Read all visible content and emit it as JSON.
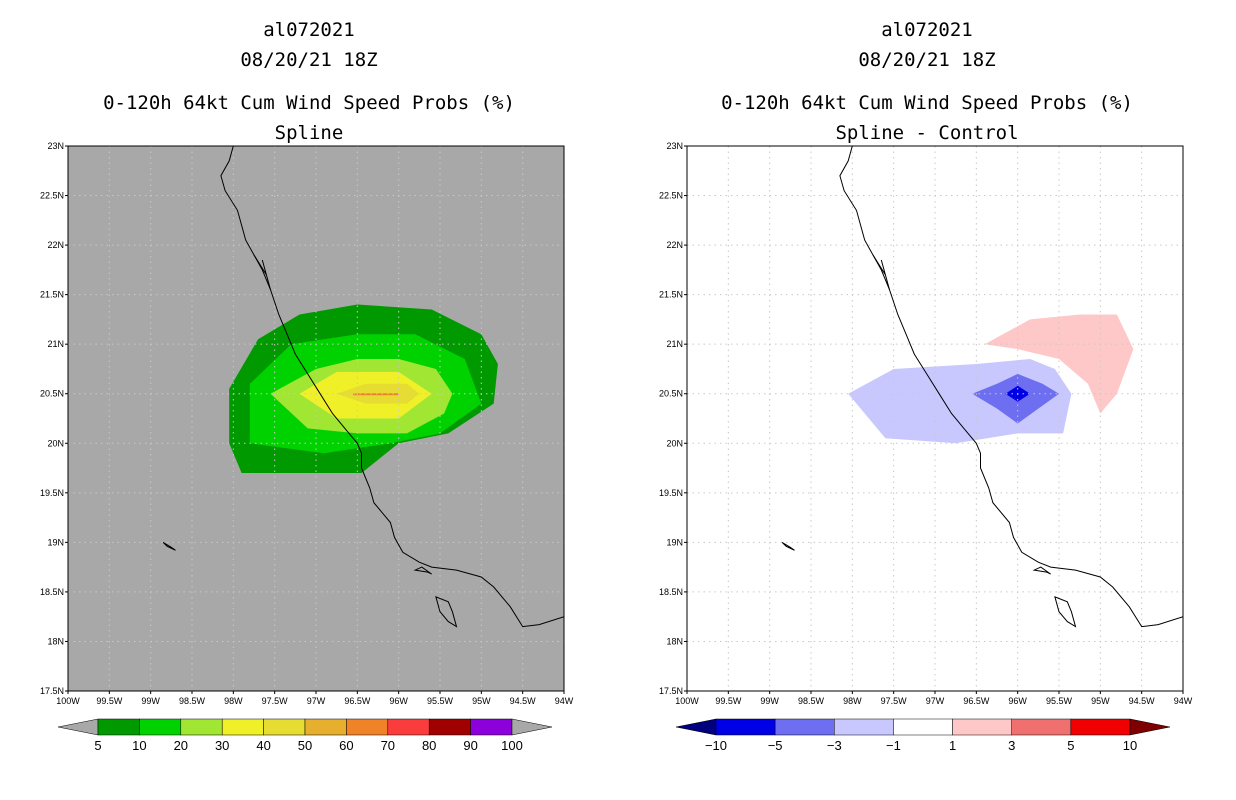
{
  "chart_data": [
    {
      "type": "heatmap",
      "title_lines": [
        "al072021",
        "08/20/21 18Z",
        "0-120h 64kt Cum Wind Speed Probs (%)",
        "Spline"
      ],
      "xlim": [
        -100,
        -94
      ],
      "ylim": [
        17.5,
        23
      ],
      "x_ticks": [
        "100W",
        "99.5W",
        "99W",
        "98.5W",
        "98W",
        "97.5W",
        "97W",
        "96.5W",
        "96W",
        "95.5W",
        "95W",
        "94.5W",
        "94W"
      ],
      "y_ticks": [
        "17.5N",
        "18N",
        "18.5N",
        "19N",
        "19.5N",
        "20N",
        "20.5N",
        "21N",
        "21.5N",
        "22N",
        "22.5N",
        "23N"
      ],
      "background_color": "#a8a8a8",
      "grid": true,
      "contour_levels": [
        {
          "threshold": 5,
          "color": "#009a00",
          "polygon": [
            [
              -97.9,
              19.7
            ],
            [
              -96.9,
              19.7
            ],
            [
              -96.45,
              19.7
            ],
            [
              -96.0,
              20.0
            ],
            [
              -95.4,
              20.1
            ],
            [
              -94.85,
              20.4
            ],
            [
              -94.8,
              20.8
            ],
            [
              -95.0,
              21.1
            ],
            [
              -95.6,
              21.35
            ],
            [
              -96.5,
              21.4
            ],
            [
              -97.2,
              21.3
            ],
            [
              -97.7,
              21.05
            ],
            [
              -98.05,
              20.55
            ],
            [
              -98.05,
              20.0
            ],
            [
              -97.9,
              19.7
            ]
          ]
        },
        {
          "threshold": 10,
          "color": "#00d200",
          "polygon": [
            [
              -97.8,
              20.0
            ],
            [
              -96.9,
              19.9
            ],
            [
              -96.1,
              20.0
            ],
            [
              -95.5,
              20.1
            ],
            [
              -95.0,
              20.4
            ],
            [
              -95.2,
              20.85
            ],
            [
              -95.8,
              21.1
            ],
            [
              -96.5,
              21.1
            ],
            [
              -97.3,
              21.0
            ],
            [
              -97.8,
              20.6
            ],
            [
              -97.8,
              20.0
            ]
          ]
        },
        {
          "threshold": 20,
          "color": "#a0e632",
          "polygon": [
            [
              -97.55,
              20.5
            ],
            [
              -97.1,
              20.15
            ],
            [
              -96.5,
              20.1
            ],
            [
              -95.9,
              20.1
            ],
            [
              -95.45,
              20.3
            ],
            [
              -95.35,
              20.5
            ],
            [
              -95.55,
              20.75
            ],
            [
              -96.0,
              20.85
            ],
            [
              -96.5,
              20.85
            ],
            [
              -97.0,
              20.75
            ],
            [
              -97.55,
              20.5
            ]
          ]
        },
        {
          "threshold": 30,
          "color": "#f0f028",
          "polygon": [
            [
              -97.2,
              20.5
            ],
            [
              -96.75,
              20.25
            ],
            [
              -96.0,
              20.25
            ],
            [
              -95.6,
              20.5
            ],
            [
              -96.0,
              20.72
            ],
            [
              -96.75,
              20.72
            ],
            [
              -97.2,
              20.5
            ]
          ]
        },
        {
          "threshold": 40,
          "color": "#e6dc32",
          "polygon": [
            [
              -96.75,
              20.5
            ],
            [
              -96.4,
              20.4
            ],
            [
              -95.9,
              20.4
            ],
            [
              -95.75,
              20.5
            ],
            [
              -95.9,
              20.6
            ],
            [
              -96.4,
              20.6
            ],
            [
              -96.75,
              20.5
            ]
          ]
        },
        {
          "threshold": 60,
          "color": "#f08228",
          "polygon": [
            [
              -96.55,
              20.505
            ],
            [
              -96.0,
              20.505
            ],
            [
              -96.0,
              20.485
            ],
            [
              -96.55,
              20.485
            ]
          ]
        }
      ],
      "colorbar": {
        "labels": [
          "5",
          "10",
          "20",
          "30",
          "40",
          "50",
          "60",
          "70",
          "80",
          "90",
          "100"
        ],
        "colors": [
          "#009a00",
          "#00d200",
          "#a0e632",
          "#f0f028",
          "#e6dc32",
          "#e6af2d",
          "#f08228",
          "#fa3c3c",
          "#a00000",
          "#8c00dc"
        ],
        "end_under": "#a8a8a8",
        "end_over": "#a8a8a8"
      }
    },
    {
      "type": "heatmap",
      "title_lines": [
        "al072021",
        "08/20/21 18Z",
        "0-120h 64kt Cum Wind Speed Probs (%)",
        "Spline - Control"
      ],
      "xlim": [
        -100,
        -94
      ],
      "ylim": [
        17.5,
        23
      ],
      "x_ticks": [
        "100W",
        "99.5W",
        "99W",
        "98.5W",
        "98W",
        "97.5W",
        "97W",
        "96.5W",
        "96W",
        "95.5W",
        "95W",
        "94.5W",
        "94W"
      ],
      "y_ticks": [
        "17.5N",
        "18N",
        "18.5N",
        "19N",
        "19.5N",
        "20N",
        "20.5N",
        "21N",
        "21.5N",
        "22N",
        "22.5N",
        "23N"
      ],
      "background_color": "#ffffff",
      "grid": true,
      "contour_levels": [
        {
          "threshold": -1,
          "color": "#c8c8ff",
          "polygon": [
            [
              -98.05,
              20.5
            ],
            [
              -97.5,
              20.75
            ],
            [
              -96.5,
              20.8
            ],
            [
              -95.85,
              20.85
            ],
            [
              -95.55,
              20.75
            ],
            [
              -95.35,
              20.5
            ],
            [
              -95.45,
              20.1
            ],
            [
              -96.0,
              20.1
            ],
            [
              -96.75,
              20.0
            ],
            [
              -97.6,
              20.05
            ],
            [
              -98.05,
              20.5
            ]
          ]
        },
        {
          "threshold": -3,
          "color": "#6e6ef0",
          "polygon": [
            [
              -96.55,
              20.5
            ],
            [
              -96.25,
              20.6
            ],
            [
              -96.0,
              20.7
            ],
            [
              -95.7,
              20.6
            ],
            [
              -95.5,
              20.5
            ],
            [
              -95.75,
              20.35
            ],
            [
              -96.0,
              20.2
            ],
            [
              -96.25,
              20.35
            ],
            [
              -96.55,
              20.5
            ]
          ]
        },
        {
          "threshold": -5,
          "color": "#0000e6",
          "polygon": [
            [
              -96.15,
              20.5
            ],
            [
              -96.0,
              20.58
            ],
            [
              -95.85,
              20.5
            ],
            [
              -96.0,
              20.42
            ],
            [
              -96.15,
              20.5
            ]
          ]
        },
        {
          "threshold": 1,
          "color": "#ffc8c8",
          "polygon": [
            [
              -96.4,
              21.0
            ],
            [
              -95.85,
              21.25
            ],
            [
              -95.25,
              21.3
            ],
            [
              -94.8,
              21.3
            ],
            [
              -94.6,
              20.95
            ],
            [
              -94.8,
              20.5
            ],
            [
              -95.0,
              20.3
            ],
            [
              -95.15,
              20.6
            ],
            [
              -95.5,
              20.85
            ],
            [
              -96.0,
              20.95
            ],
            [
              -96.4,
              21.0
            ]
          ]
        }
      ],
      "colorbar": {
        "labels": [
          "-10",
          "-5",
          "-3",
          "-1",
          "1",
          "3",
          "5",
          "10"
        ],
        "colors": [
          "#0000e6",
          "#6e6ef0",
          "#c8c8ff",
          "#ffffff",
          "#ffc8c8",
          "#f07070",
          "#f00000"
        ],
        "end_under": "#00007f",
        "end_over": "#7f0000"
      }
    }
  ],
  "coastline": [
    [
      -98.0,
      23.0
    ],
    [
      -98.05,
      22.85
    ],
    [
      -98.15,
      22.7
    ],
    [
      -98.1,
      22.55
    ],
    [
      -97.95,
      22.35
    ],
    [
      -97.9,
      22.2
    ],
    [
      -97.85,
      22.05
    ],
    [
      -97.75,
      21.9
    ],
    [
      -97.65,
      21.75
    ],
    [
      -97.55,
      21.55
    ],
    [
      -97.45,
      21.3
    ],
    [
      -97.35,
      21.1
    ],
    [
      -97.25,
      20.9
    ],
    [
      -97.1,
      20.7
    ],
    [
      -96.95,
      20.5
    ],
    [
      -96.8,
      20.3
    ],
    [
      -96.65,
      20.15
    ],
    [
      -96.5,
      20.0
    ],
    [
      -96.45,
      19.9
    ],
    [
      -96.45,
      19.75
    ],
    [
      -96.35,
      19.55
    ],
    [
      -96.3,
      19.4
    ],
    [
      -96.1,
      19.2
    ],
    [
      -96.05,
      19.05
    ],
    [
      -95.95,
      18.9
    ],
    [
      -95.75,
      18.8
    ],
    [
      -95.6,
      18.75
    ],
    [
      -95.3,
      18.72
    ],
    [
      -95.0,
      18.65
    ],
    [
      -94.85,
      18.55
    ],
    [
      -94.65,
      18.35
    ],
    [
      -94.5,
      18.15
    ],
    [
      -94.3,
      18.17
    ],
    [
      -94.0,
      18.25
    ]
  ],
  "lagoon": [
    [
      -97.75,
      21.9
    ],
    [
      -97.6,
      21.7
    ],
    [
      -97.55,
      21.55
    ],
    [
      -97.65,
      21.85
    ]
  ],
  "islands": [
    [
      [
        -98.85,
        19.0
      ],
      [
        -98.75,
        18.95
      ],
      [
        -98.7,
        18.92
      ],
      [
        -98.8,
        18.96
      ],
      [
        -98.85,
        19.0
      ]
    ],
    [
      [
        -95.8,
        18.72
      ],
      [
        -95.65,
        18.7
      ],
      [
        -95.6,
        18.68
      ],
      [
        -95.72,
        18.75
      ],
      [
        -95.8,
        18.72
      ]
    ],
    [
      [
        -95.55,
        18.45
      ],
      [
        -95.4,
        18.4
      ],
      [
        -95.35,
        18.3
      ],
      [
        -95.3,
        18.15
      ],
      [
        -95.4,
        18.2
      ],
      [
        -95.5,
        18.3
      ],
      [
        -95.55,
        18.45
      ]
    ]
  ]
}
